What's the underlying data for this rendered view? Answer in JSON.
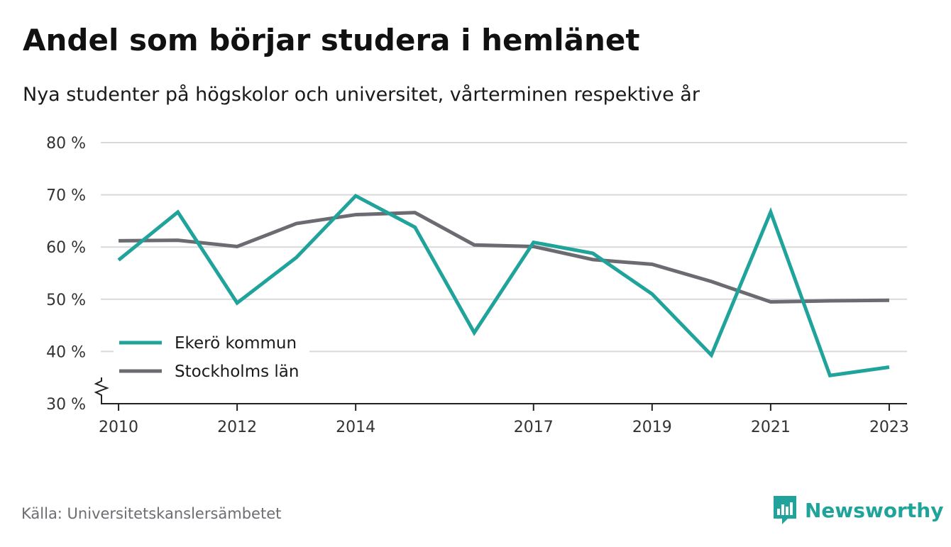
{
  "title": "Andel som börjar studera i hemlänet",
  "subtitle": "Nya studenter på högskolor och universitet, vårterminen respektive år",
  "source": "Källa: Universitetskanslersämbetet",
  "brand": {
    "name": "Newsworthy",
    "icon": "newsworthy-logo-icon",
    "color": "#1fa39a"
  },
  "chart_data": {
    "type": "line",
    "x": [
      2010,
      2011,
      2012,
      2013,
      2014,
      2015,
      2016,
      2017,
      2018,
      2019,
      2020,
      2021,
      2022,
      2023
    ],
    "series": [
      {
        "name": "Ekerö kommun",
        "color": "#1fa39a",
        "values": [
          57.5,
          66.7,
          49.3,
          58.0,
          69.8,
          63.8,
          43.6,
          60.9,
          58.8,
          51.0,
          39.3,
          66.7,
          35.4,
          37.0
        ]
      },
      {
        "name": "Stockholms län",
        "color": "#6d6b72",
        "values": [
          61.2,
          61.3,
          60.1,
          64.5,
          66.2,
          66.6,
          60.4,
          60.1,
          57.6,
          56.7,
          53.4,
          49.5,
          49.7,
          49.8
        ]
      }
    ],
    "x_ticks": [
      "2010",
      "2012",
      "2014",
      "2017",
      "2019",
      "2021",
      "2023"
    ],
    "y_ticks": [
      "30 %",
      "40 %",
      "50 %",
      "60 %",
      "70 %",
      "80 %"
    ],
    "ylim": [
      30,
      80
    ],
    "xlim": [
      2009.7,
      2023.3
    ],
    "grid": true,
    "y_axis_break": true,
    "legend_position": "bottom-left"
  }
}
